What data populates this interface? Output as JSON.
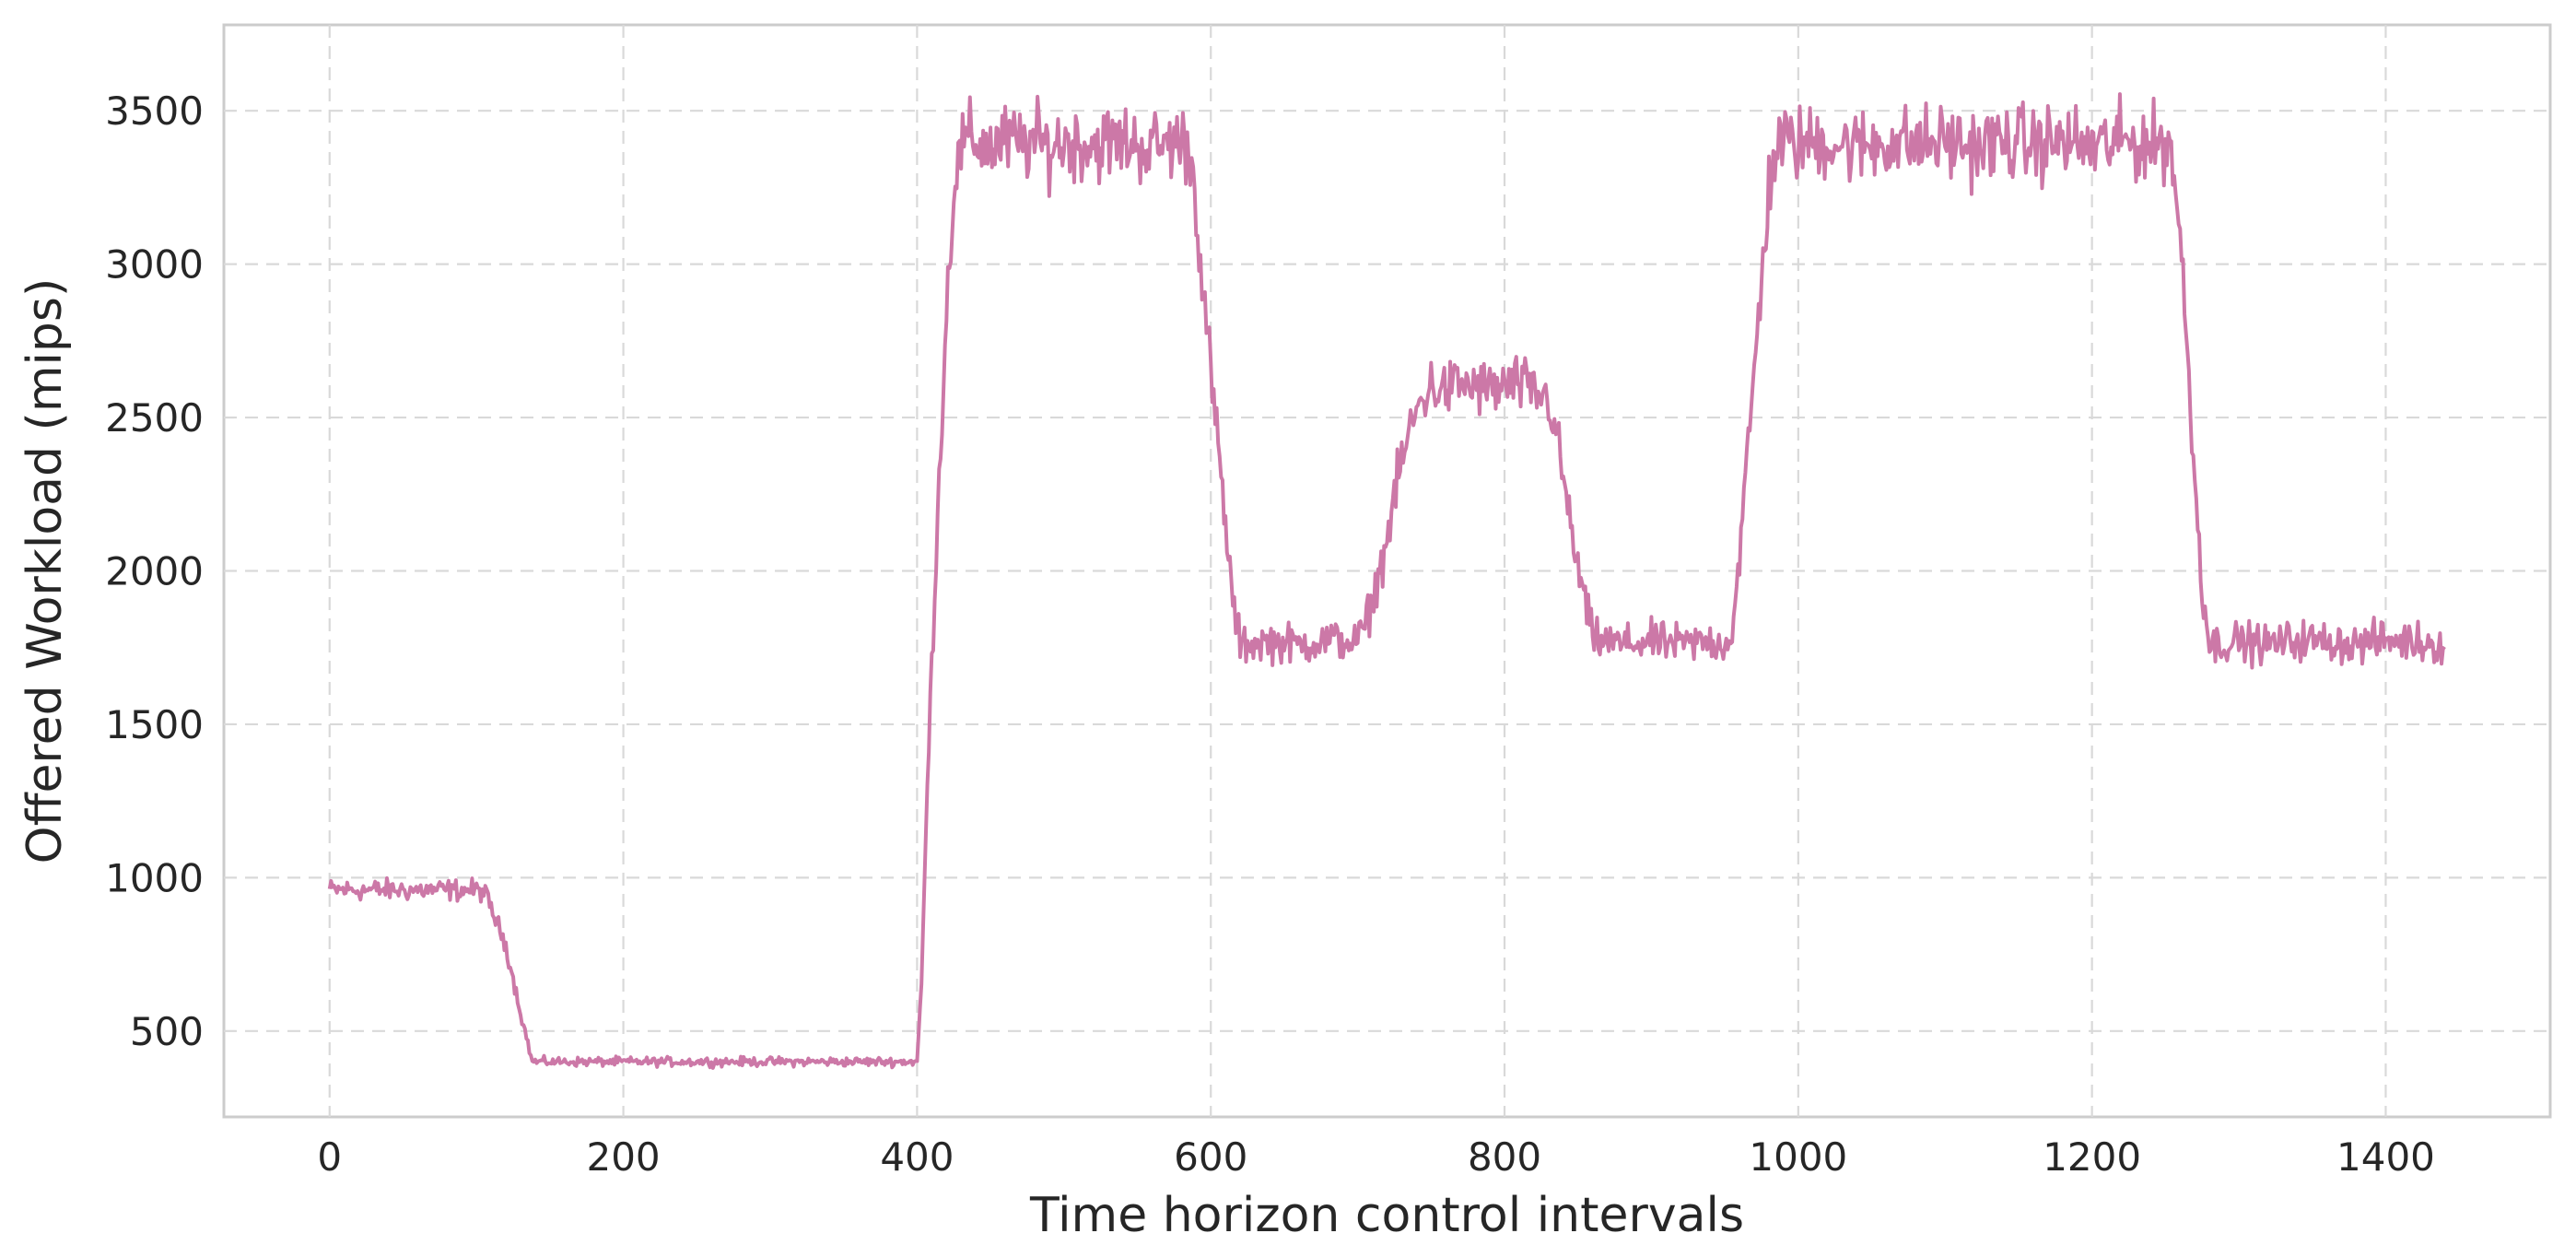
{
  "chart_data": {
    "type": "line",
    "title": "",
    "xlabel": "Time horizon control intervals",
    "ylabel": "Offered Workload (mips)",
    "xlim": [
      -72,
      1512
    ],
    "ylim": [
      220,
      3780
    ],
    "x_ticks": [
      0,
      200,
      400,
      600,
      800,
      1000,
      1200,
      1400
    ],
    "y_ticks": [
      500,
      1000,
      1500,
      2000,
      2500,
      3000,
      3500
    ],
    "x_tick_labels": [
      "0",
      "200",
      "400",
      "600",
      "800",
      "1000",
      "1200",
      "1400"
    ],
    "y_tick_labels": [
      "500",
      "1000",
      "1500",
      "2000",
      "2500",
      "3000",
      "3500"
    ],
    "grid": true,
    "legend": "none",
    "series": [
      {
        "color": "#cc78a7",
        "x": [
          0,
          100,
          105,
          110,
          120,
          130,
          138,
          150,
          200,
          250,
          300,
          350,
          400,
          403,
          406,
          410,
          415,
          420,
          425,
          430,
          435,
          440,
          450,
          460,
          470,
          480,
          490,
          500,
          520,
          540,
          560,
          575,
          585,
          590,
          595,
          600,
          605,
          610,
          615,
          620,
          640,
          660,
          680,
          700,
          705,
          710,
          715,
          720,
          725,
          730,
          735,
          740,
          745,
          750,
          760,
          770,
          780,
          790,
          800,
          810,
          820,
          830,
          835,
          840,
          845,
          850,
          855,
          860,
          870,
          880,
          900,
          920,
          940,
          950,
          955,
          960,
          965,
          970,
          975,
          980,
          985,
          990,
          1000,
          1020,
          1040,
          1060,
          1080,
          1100,
          1120,
          1140,
          1160,
          1180,
          1200,
          1220,
          1240,
          1250,
          1255,
          1260,
          1265,
          1270,
          1275,
          1280,
          1300,
          1320,
          1340,
          1360,
          1380,
          1400,
          1420,
          1440
        ],
        "y": [
          960,
          960,
          955,
          900,
          780,
          560,
          400,
          400,
          400,
          400,
          400,
          400,
          400,
          650,
          1150,
          1700,
          2300,
          2850,
          3250,
          3380,
          3400,
          3400,
          3380,
          3400,
          3390,
          3400,
          3380,
          3400,
          3390,
          3400,
          3380,
          3400,
          3390,
          3200,
          2900,
          2650,
          2400,
          2150,
          1900,
          1760,
          1770,
          1760,
          1775,
          1770,
          1820,
          1900,
          2000,
          2100,
          2250,
          2350,
          2450,
          2520,
          2570,
          2600,
          2590,
          2610,
          2600,
          2590,
          2600,
          2610,
          2580,
          2560,
          2450,
          2300,
          2150,
          2000,
          1900,
          1780,
          1770,
          1760,
          1770,
          1760,
          1770,
          1760,
          1800,
          2050,
          2350,
          2650,
          2950,
          3250,
          3380,
          3400,
          3390,
          3400,
          3380,
          3400,
          3390,
          3400,
          3380,
          3400,
          3390,
          3400,
          3380,
          3400,
          3390,
          3400,
          3350,
          3100,
          2700,
          2300,
          1950,
          1760,
          1770,
          1760,
          1775,
          1770,
          1760,
          1775,
          1770,
          1760
        ]
      }
    ]
  }
}
